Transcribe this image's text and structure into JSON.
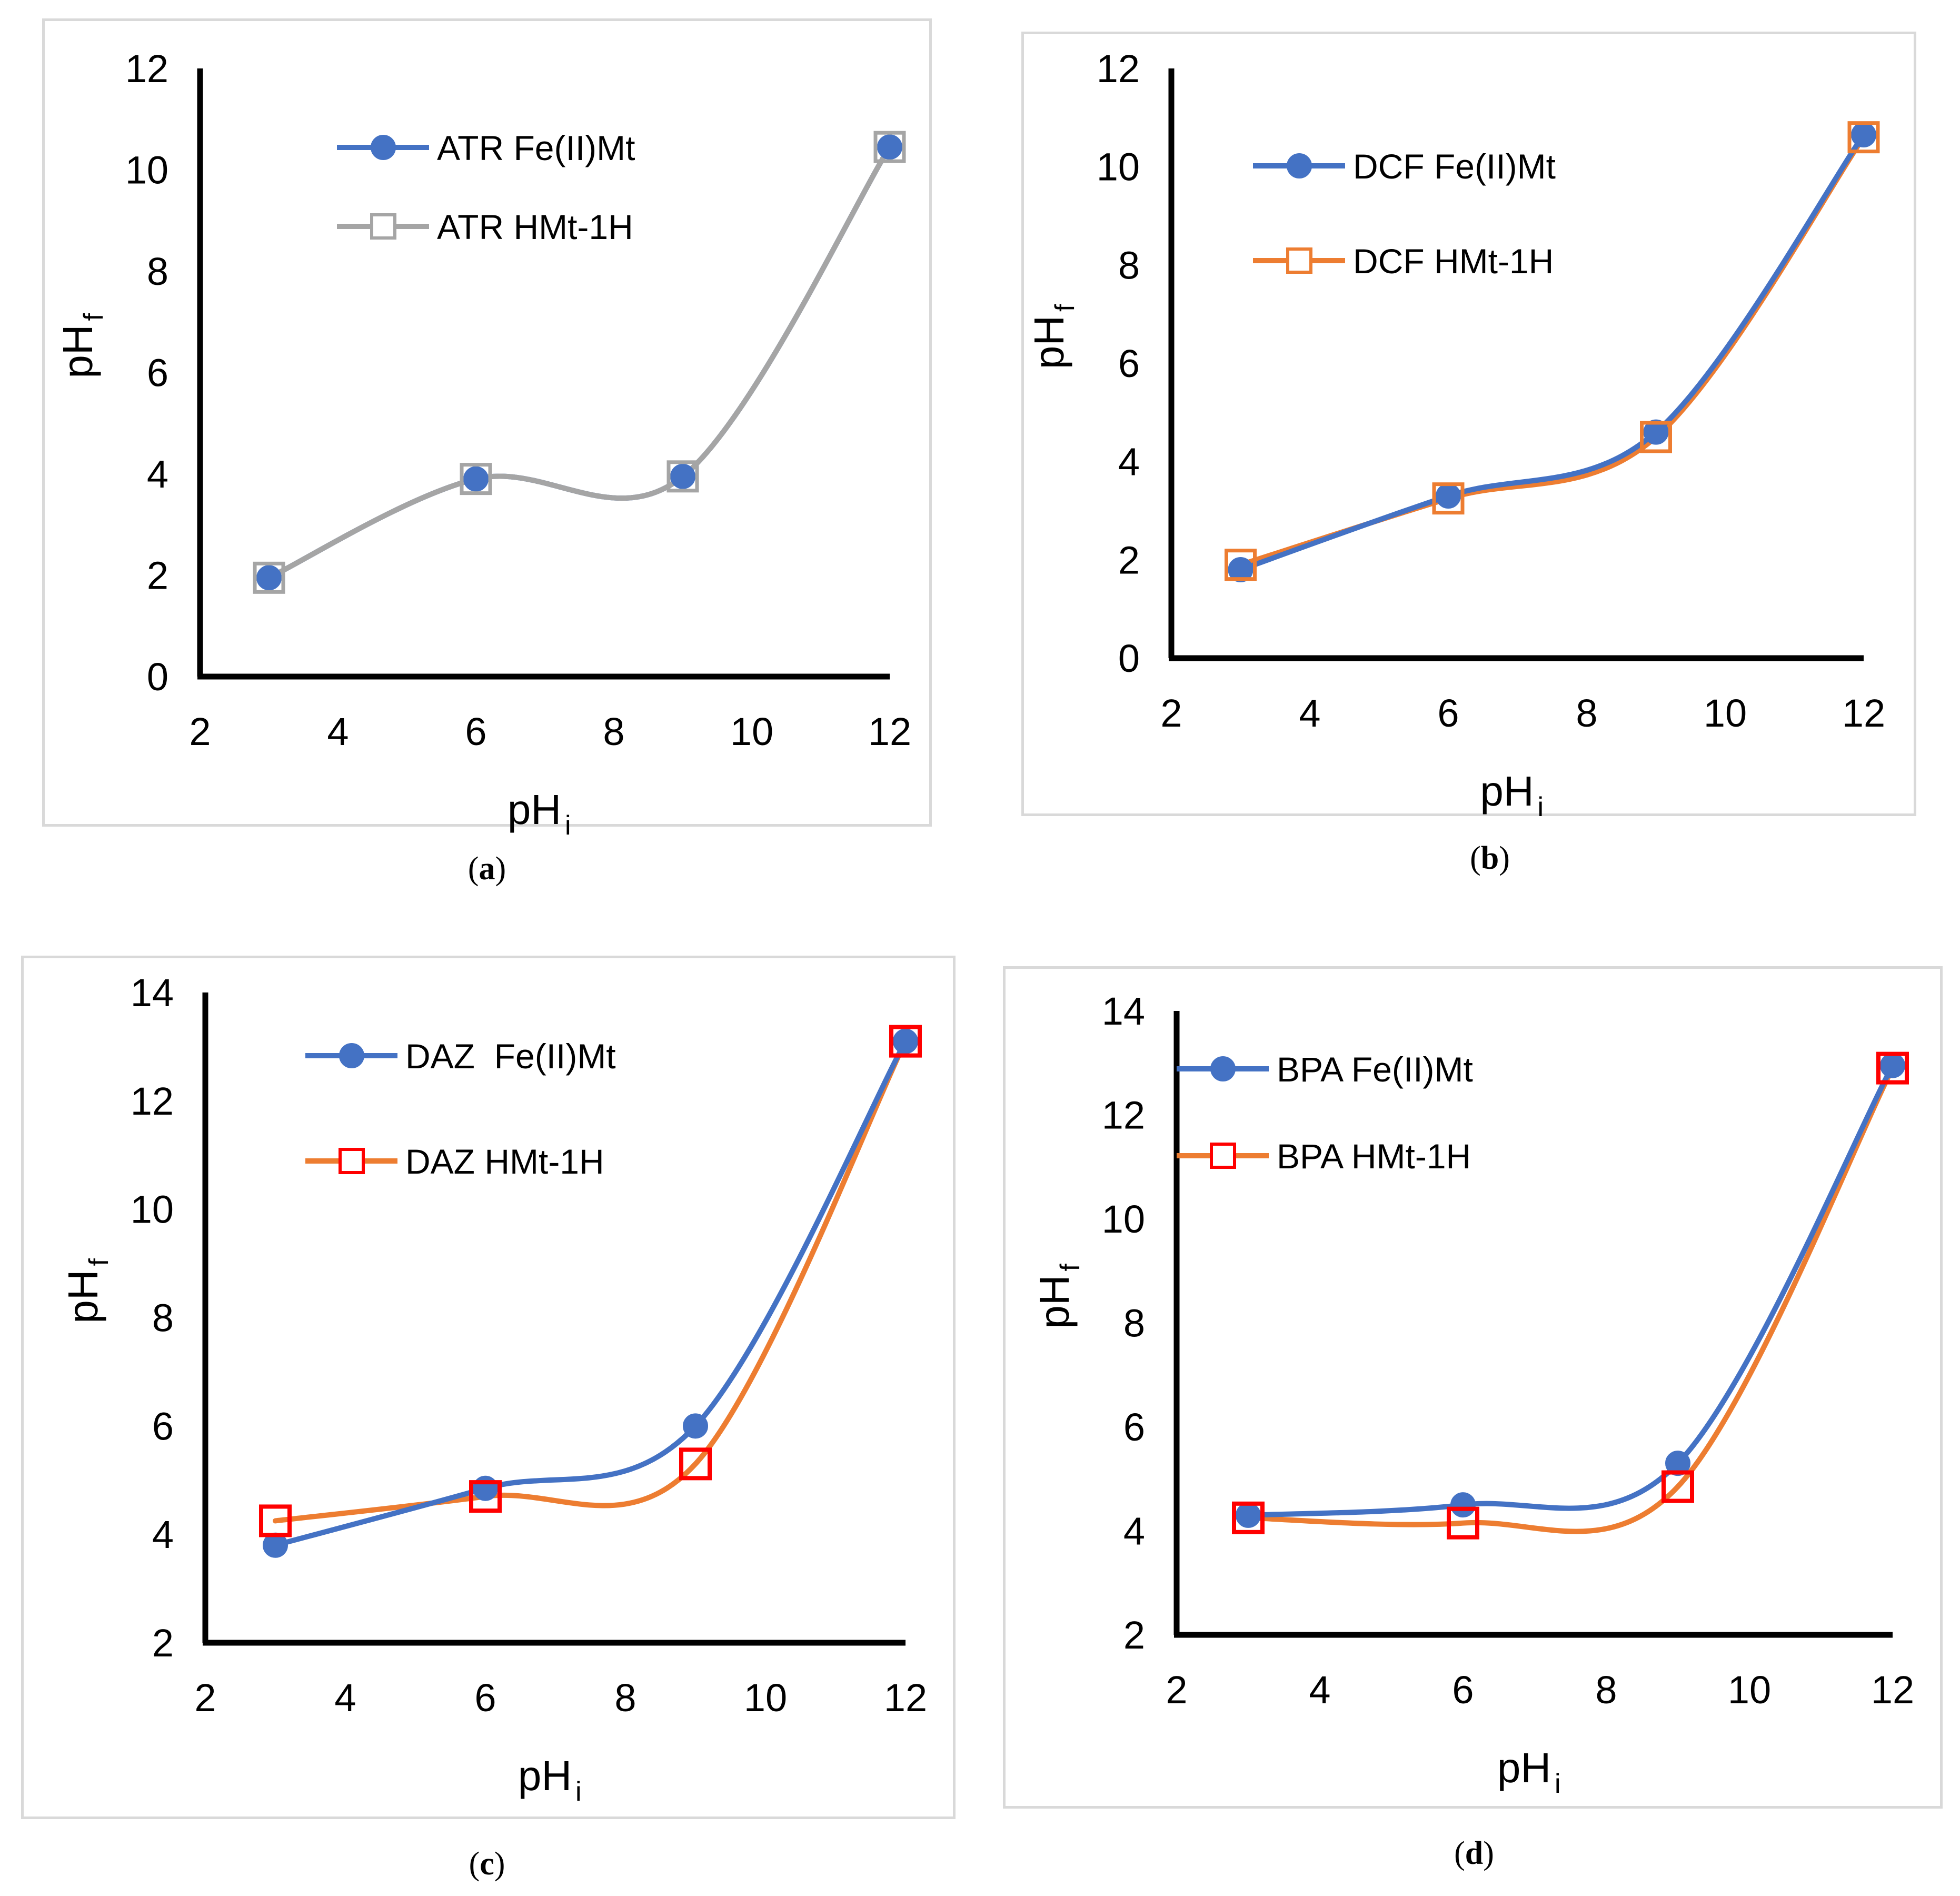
{
  "chart_data": [
    {
      "panel": "a",
      "type": "line",
      "caption_letter": "a",
      "xlabel": "pH",
      "xlabel_sub": "i",
      "ylabel": "pH",
      "ylabel_sub": "f",
      "xlim": [
        2,
        12
      ],
      "ylim": [
        0,
        12
      ],
      "xticks": [
        "2",
        "4",
        "6",
        "8",
        "10",
        "12"
      ],
      "yticks": [
        "0",
        "2",
        "4",
        "6",
        "8",
        "10",
        "12"
      ],
      "series": [
        {
          "name": "ATR Fe(II)Mt",
          "x": [
            3,
            6,
            9,
            12
          ],
          "y": [
            1.95,
            3.9,
            3.95,
            10.45
          ],
          "line_color": "#4472c4",
          "marker": "circle",
          "marker_fill": "#4472c4",
          "marker_stroke": "#4472c4"
        },
        {
          "name": "ATR HMt-1H",
          "x": [
            3,
            6,
            9,
            12
          ],
          "y": [
            1.95,
            3.9,
            3.95,
            10.45
          ],
          "line_color": "#a5a5a5",
          "marker": "square",
          "marker_fill": "none",
          "marker_stroke": "#a5a5a5"
        }
      ]
    },
    {
      "panel": "b",
      "type": "line",
      "caption_letter": "b",
      "xlabel": "pH",
      "xlabel_sub": "i",
      "ylabel": "pH",
      "ylabel_sub": "f",
      "xlim": [
        2,
        12
      ],
      "ylim": [
        0,
        12
      ],
      "xticks": [
        "2",
        "4",
        "6",
        "8",
        "10",
        "12"
      ],
      "yticks": [
        "0",
        "2",
        "4",
        "6",
        "8",
        "10",
        "12"
      ],
      "series": [
        {
          "name": "DCF Fe(II)Mt",
          "x": [
            3,
            6,
            9,
            12
          ],
          "y": [
            1.8,
            3.3,
            4.6,
            10.65
          ],
          "line_color": "#4472c4",
          "marker": "circle",
          "marker_fill": "#4472c4",
          "marker_stroke": "#4472c4"
        },
        {
          "name": "DCF HMt-1H",
          "x": [
            3,
            6,
            9,
            12
          ],
          "y": [
            1.9,
            3.25,
            4.5,
            10.6
          ],
          "line_color": "#ed7d31",
          "marker": "square",
          "marker_fill": "none",
          "marker_stroke": "#ed7d31"
        }
      ]
    },
    {
      "panel": "c",
      "type": "line",
      "caption_letter": "c",
      "xlabel": "pH",
      "xlabel_sub": "i",
      "ylabel": "pH",
      "ylabel_sub": "f",
      "xlim": [
        2,
        12
      ],
      "ylim": [
        2,
        14
      ],
      "xticks": [
        "2",
        "4",
        "6",
        "8",
        "10",
        "12"
      ],
      "yticks": [
        "2",
        "4",
        "6",
        "8",
        "10",
        "12",
        "14"
      ],
      "series": [
        {
          "name": "DAZ  Fe(II)Mt",
          "x": [
            3,
            6,
            9,
            12
          ],
          "y": [
            3.8,
            4.85,
            6.0,
            13.1
          ],
          "line_color": "#4472c4",
          "marker": "circle",
          "marker_fill": "#4472c4",
          "marker_stroke": "#4472c4"
        },
        {
          "name": "DAZ HMt-1H",
          "x": [
            3,
            6,
            9,
            12
          ],
          "y": [
            4.25,
            4.7,
            5.3,
            13.1
          ],
          "line_color": "#ed7d31",
          "marker": "square",
          "marker_fill": "none",
          "marker_stroke": "#ff0000"
        }
      ]
    },
    {
      "panel": "d",
      "type": "line",
      "caption_letter": "d",
      "xlabel": "pH",
      "xlabel_sub": "i",
      "ylabel": "pH",
      "ylabel_sub": "f",
      "xlim": [
        2,
        12
      ],
      "ylim": [
        2,
        14
      ],
      "xticks": [
        "2",
        "4",
        "6",
        "8",
        "10",
        "12"
      ],
      "yticks": [
        "2",
        "4",
        "6",
        "8",
        "10",
        "12",
        "14"
      ],
      "series": [
        {
          "name": "BPA Fe(II)Mt",
          "x": [
            3,
            6,
            9,
            12
          ],
          "y": [
            4.3,
            4.5,
            5.3,
            12.95
          ],
          "line_color": "#4472c4",
          "marker": "circle",
          "marker_fill": "#4472c4",
          "marker_stroke": "#4472c4"
        },
        {
          "name": "BPA HMt-1H",
          "x": [
            3,
            6,
            9,
            12
          ],
          "y": [
            4.25,
            4.15,
            4.85,
            12.9
          ],
          "line_color": "#ed7d31",
          "marker": "square",
          "marker_fill": "none",
          "marker_stroke": "#ff0000"
        }
      ]
    }
  ]
}
